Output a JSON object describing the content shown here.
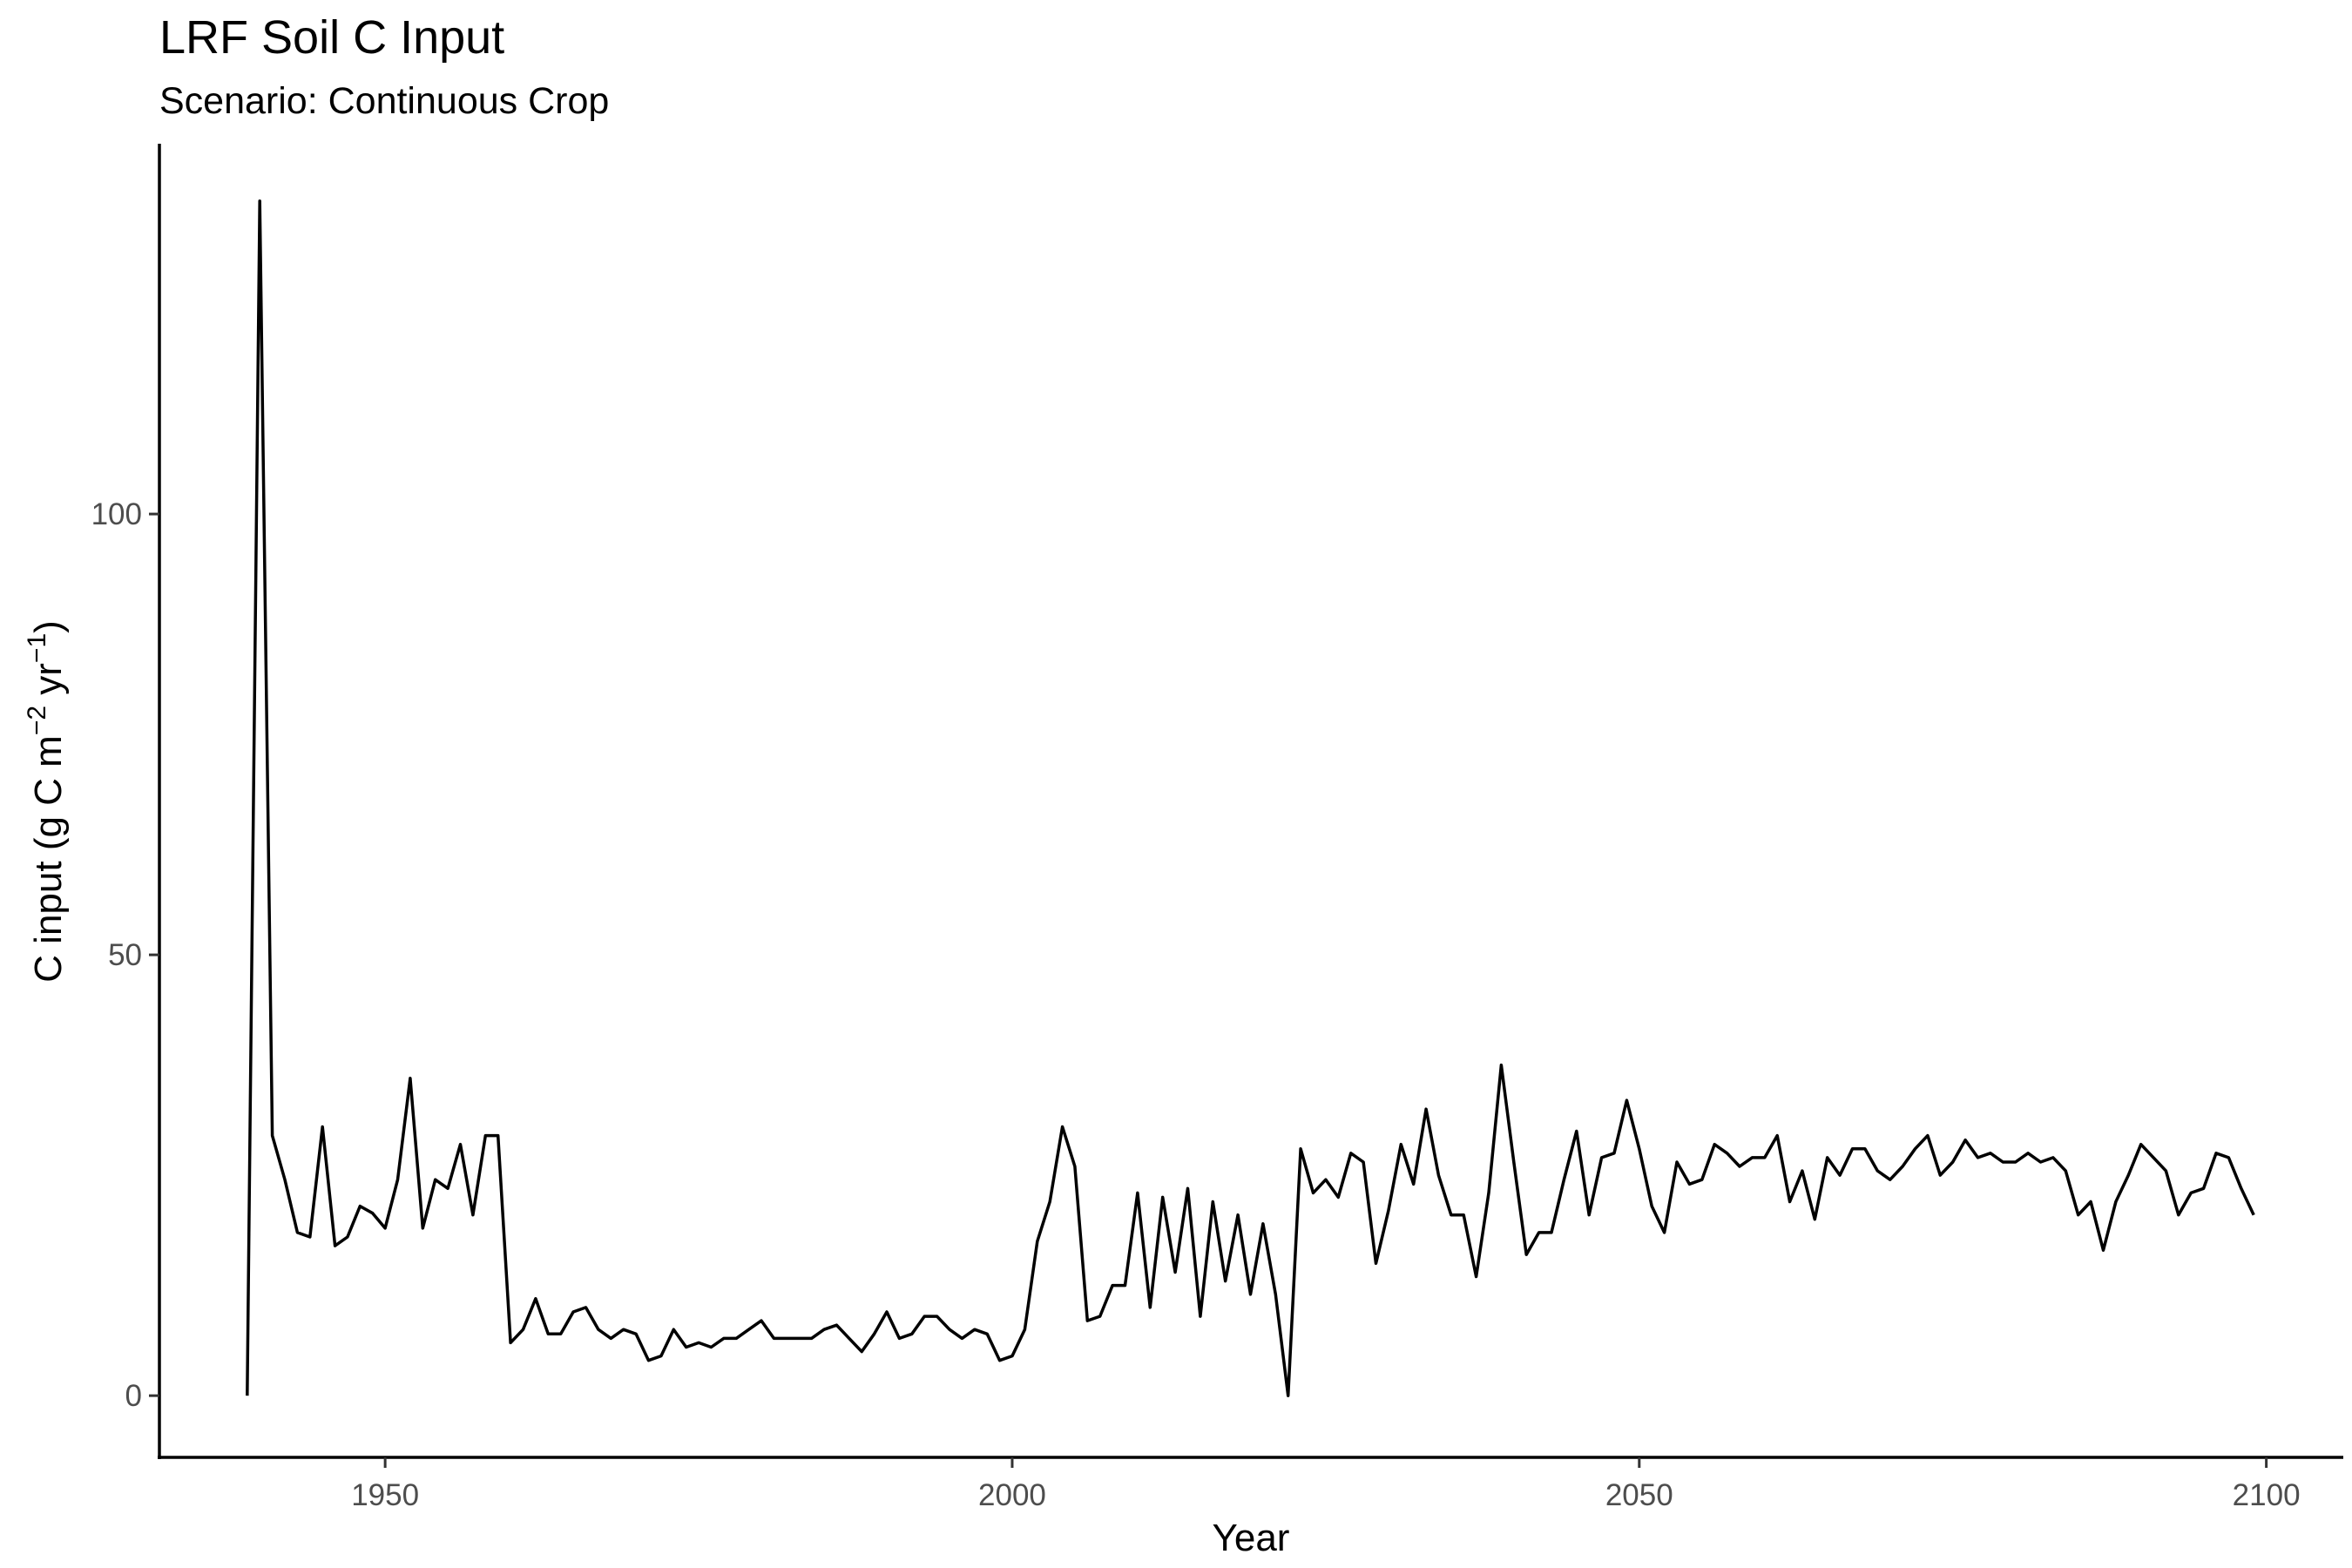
{
  "chart_data": {
    "type": "line",
    "title": "LRF Soil C Input",
    "subtitle": "Scenario: Continuous Crop",
    "xlabel": "Year",
    "ylabel": "C input (g C m",
    "ylabel_sup1": "−2",
    "ylabel_mid": " yr",
    "ylabel_sup2": "−1",
    "ylabel_end": ")",
    "xlim": [
      1932,
      2106
    ],
    "ylim": [
      -7,
      142
    ],
    "x_ticks": [
      1950,
      2000,
      2050,
      2100
    ],
    "x_tick_labels": [
      "1950",
      "2000",
      "2050",
      "2100"
    ],
    "y_ticks": [
      0,
      50,
      100
    ],
    "y_tick_labels": [
      "0",
      "50",
      "100"
    ],
    "grid": false,
    "legend": "none",
    "line_color": "#000000",
    "series": [
      {
        "x": [
          1939,
          1940,
          1941,
          1942,
          1943,
          1944,
          1945,
          1946,
          1947,
          1948,
          1949,
          1950,
          1951,
          1952,
          1953,
          1954,
          1955,
          1956,
          1957,
          1958,
          1959,
          1960,
          1961,
          1962,
          1963,
          1964,
          1965,
          1966,
          1967,
          1968,
          1969,
          1970,
          1971,
          1972,
          1973,
          1974,
          1975,
          1976,
          1977,
          1978,
          1979,
          1980,
          1981,
          1982,
          1983,
          1984,
          1985,
          1986,
          1987,
          1988,
          1989,
          1990,
          1991,
          1992,
          1993,
          1994,
          1995,
          1996,
          1997,
          1998,
          1999,
          2000,
          2001,
          2002,
          2003,
          2004,
          2005,
          2006,
          2007,
          2008,
          2009,
          2010,
          2011,
          2012,
          2013,
          2014,
          2015,
          2016,
          2017,
          2018,
          2019,
          2020,
          2021,
          2022,
          2023,
          2024,
          2025,
          2026,
          2027,
          2028,
          2029,
          2030,
          2031,
          2032,
          2033,
          2034,
          2035,
          2036,
          2037,
          2038,
          2039,
          2040,
          2041,
          2042,
          2043,
          2044,
          2045,
          2046,
          2047,
          2048,
          2049,
          2050,
          2051,
          2052,
          2053,
          2054,
          2055,
          2056,
          2057,
          2058,
          2059,
          2060,
          2061,
          2062,
          2063,
          2064,
          2065,
          2066,
          2067,
          2068,
          2069,
          2070,
          2071,
          2072,
          2073,
          2074,
          2075,
          2076,
          2077,
          2078,
          2079,
          2080,
          2081,
          2082,
          2083,
          2084,
          2085,
          2086,
          2087,
          2088,
          2089,
          2090,
          2091,
          2092,
          2093,
          2094,
          2095,
          2096,
          2097,
          2098,
          2099
        ],
        "values": [
          0,
          135.5,
          29.5,
          24.5,
          18.5,
          18,
          30.5,
          17,
          18,
          21.5,
          20.7,
          19,
          24.5,
          36,
          19,
          24.5,
          23.5,
          28.5,
          20.5,
          29.5,
          29.5,
          6,
          7.5,
          11,
          7,
          7,
          9.5,
          10,
          7.5,
          6.5,
          7.5,
          7,
          4,
          4.5,
          7.5,
          5.5,
          6,
          5.5,
          6.5,
          6.5,
          7.5,
          8.5,
          6.5,
          6.5,
          6.5,
          6.5,
          7.5,
          8,
          6.5,
          5,
          7,
          9.5,
          6.5,
          7,
          9,
          9,
          7.5,
          6.5,
          7.5,
          7,
          4,
          4.5,
          7.5,
          17.5,
          22,
          30.5,
          26,
          8.5,
          9,
          12.5,
          12.5,
          23,
          10,
          22.5,
          14,
          23.5,
          9,
          22,
          13,
          20.5,
          11.5,
          19.5,
          11.5,
          0,
          28,
          23,
          24.5,
          22.5,
          27.5,
          26.5,
          15,
          21,
          28.5,
          24,
          32.5,
          25,
          20.5,
          20.5,
          13.5,
          23,
          37.5,
          26.5,
          16,
          18.5,
          18.5,
          24.5,
          30,
          20.5,
          27,
          27.5,
          33.5,
          28,
          21.5,
          18.5,
          26.5,
          24,
          24.5,
          28.5,
          27.5,
          26,
          27,
          27,
          29.5,
          22,
          25.5,
          20,
          27,
          25,
          28,
          28,
          25.5,
          24.5,
          26,
          28,
          29.5,
          25,
          26.5,
          29,
          27,
          27.5,
          26.5,
          26.5,
          27.5,
          26.5,
          27,
          25.5,
          20.5,
          22,
          16.5,
          22,
          25,
          28.5,
          27,
          25.5,
          20.5,
          23,
          23.5,
          27.5,
          27,
          23.5,
          20.5
        ]
      }
    ]
  }
}
